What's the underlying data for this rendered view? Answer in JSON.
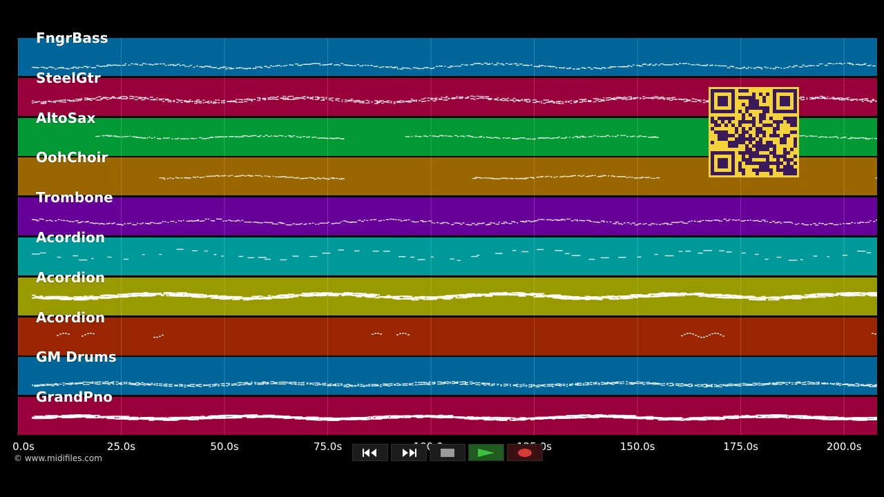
{
  "tracks": [
    {
      "label": "FngrBass",
      "color": "#006699"
    },
    {
      "label": "SteelGtr",
      "color": "#99003a"
    },
    {
      "label": "AltoSax",
      "color": "#009933"
    },
    {
      "label": "OohChoir",
      "color": "#996600"
    },
    {
      "label": "Trombone",
      "color": "#660099"
    },
    {
      "label": "Acordion",
      "color": "#009999"
    },
    {
      "label": "Acordion",
      "color": "#999900"
    },
    {
      "label": "Acordion",
      "color": "#992600"
    },
    {
      "label": "GM Drums",
      "color": "#006699"
    },
    {
      "label": "GrandPno",
      "color": "#99003a"
    }
  ],
  "timeline": {
    "ticks": [
      "0.0s",
      "25.0s",
      "50.0s",
      "75.0s",
      "100.0s",
      "125.0s",
      "150.0s",
      "175.0s",
      "200.0s"
    ],
    "tick_values": [
      0,
      25,
      50,
      75,
      100,
      125,
      150,
      175,
      200
    ],
    "range": [
      0,
      208
    ]
  },
  "copyright": "© www.midifiles.com",
  "transport": {
    "buttons": [
      {
        "name": "rewind-button",
        "icon": "rewind-icon"
      },
      {
        "name": "fast-forward-button",
        "icon": "fast-forward-icon"
      },
      {
        "name": "stop-button",
        "icon": "stop-icon"
      },
      {
        "name": "play-button",
        "icon": "play-icon"
      },
      {
        "name": "record-button",
        "icon": "record-icon"
      }
    ]
  },
  "qr": {
    "icon": "qr-code-icon",
    "color": "#f4d23a",
    "ink": "#3a1a5a"
  }
}
